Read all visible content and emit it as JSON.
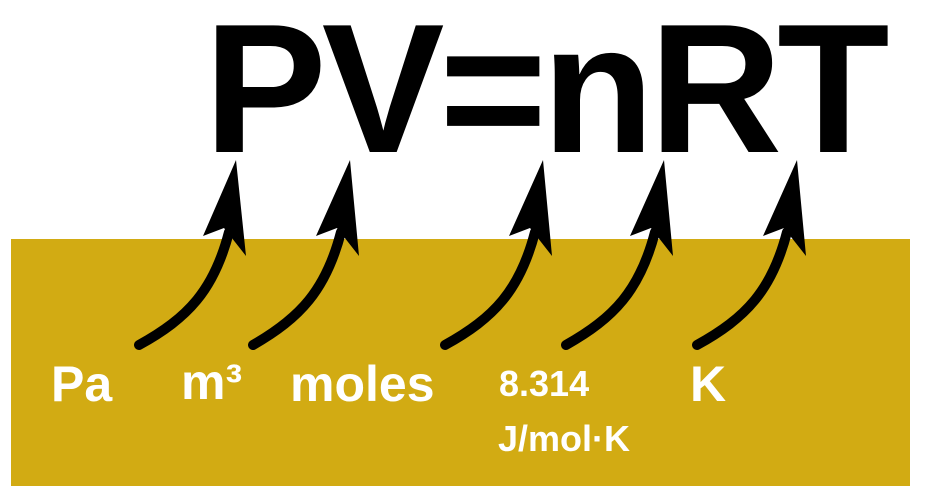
{
  "equation": "PV=nRT",
  "colors": {
    "panel": "#d2ab13",
    "arrow": "#000000",
    "unit_text": "#ffffff",
    "equation_text": "#000000"
  },
  "units": {
    "pressure": "Pa",
    "volume": "m³",
    "amount": "moles",
    "gas_constant_value": "8.314",
    "gas_constant_unit": "J/mol·K",
    "temperature": "K"
  }
}
